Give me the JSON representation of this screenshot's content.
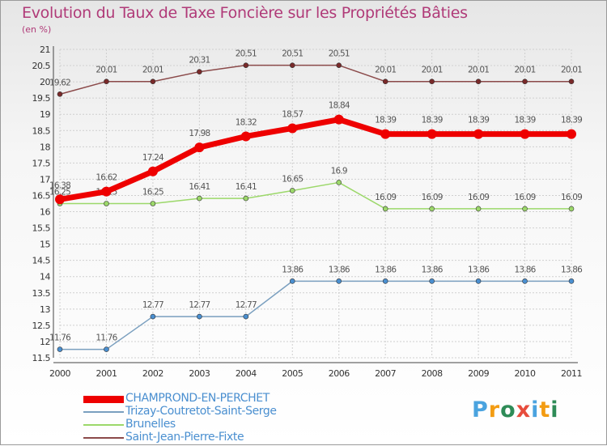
{
  "colors": {
    "title": "#b03a78",
    "champrond": "#ee0000",
    "trizay": "#4a8fd0",
    "trizay_line": "#7a9fbf",
    "brunelles": "#9cd86a",
    "saint_jean": "#7a2a2a",
    "saint_jean_line": "#8b4a4a",
    "grid": "#cfcfcf",
    "axis_text": "#333333",
    "label_text": "#555555"
  },
  "logo": {
    "letters": [
      "P",
      "r",
      "o",
      "x",
      "i",
      "t",
      "i"
    ],
    "letter_colors": [
      "#4aa3df",
      "#f39c12",
      "#2e8b57",
      "#e74c3c",
      "#4aa3df",
      "#f39c12",
      "#2e8b57"
    ]
  },
  "chart_data": {
    "type": "line",
    "title": "Evolution du Taux de Taxe Foncière sur les Propriétés Bâties",
    "subtitle": "(en %)",
    "x": [
      "2000",
      "2001",
      "2002",
      "2003",
      "2004",
      "2005",
      "2006",
      "2007",
      "2008",
      "2009",
      "2010",
      "2011"
    ],
    "ylim": [
      11.5,
      21
    ],
    "yticks": [
      "11.5",
      "12",
      "12.5",
      "13",
      "13.5",
      "14",
      "14.5",
      "15",
      "15.5",
      "16",
      "16.5",
      "17",
      "17.5",
      "18",
      "18.5",
      "19",
      "19.5",
      "20",
      "20.5",
      "21"
    ],
    "series": [
      {
        "key": "saint_jean",
        "name": "Saint-Jean-Pierre-Fixte",
        "values": [
          19.62,
          20.01,
          20.01,
          20.31,
          20.51,
          20.51,
          20.51,
          20.01,
          20.01,
          20.01,
          20.01,
          20.01
        ],
        "labels": [
          "19.62",
          "20.01",
          "20.01",
          "20.31",
          "20.51",
          "20.51",
          "20.51",
          "20.01",
          "20.01",
          "20.01",
          "20.01",
          "20.01"
        ]
      },
      {
        "key": "brunelles",
        "name": "Brunelles",
        "values": [
          16.25,
          16.25,
          16.25,
          16.41,
          16.41,
          16.65,
          16.9,
          16.09,
          16.09,
          16.09,
          16.09,
          16.09
        ],
        "labels": [
          "16.25",
          "16.25",
          "16.25",
          "16.41",
          "16.41",
          "16.65",
          "16.9",
          "16.09",
          "16.09",
          "16.09",
          "16.09",
          "16.09"
        ]
      },
      {
        "key": "trizay",
        "name": "Trizay-Coutretot-Saint-Serge",
        "values": [
          11.76,
          11.76,
          12.77,
          12.77,
          12.77,
          13.86,
          13.86,
          13.86,
          13.86,
          13.86,
          13.86,
          13.86
        ],
        "labels": [
          "11.76",
          "11.76",
          "12.77",
          "12.77",
          "12.77",
          "13.86",
          "13.86",
          "13.86",
          "13.86",
          "13.86",
          "13.86",
          "13.86"
        ]
      },
      {
        "key": "champrond",
        "name": "CHAMPROND-EN-PERCHET",
        "values": [
          16.38,
          16.62,
          17.24,
          17.98,
          18.32,
          18.57,
          18.84,
          18.39,
          18.39,
          18.39,
          18.39,
          18.39
        ],
        "labels": [
          "16.38",
          "16.62",
          "17.24",
          "17.98",
          "18.32",
          "18.57",
          "18.84",
          "18.39",
          "18.39",
          "18.39",
          "18.39",
          "18.39"
        ]
      }
    ],
    "legend": [
      {
        "key": "champrond",
        "name": "CHAMPROND-EN-PERCHET"
      },
      {
        "key": "trizay",
        "name": "Trizay-Coutretot-Saint-Serge"
      },
      {
        "key": "brunelles",
        "name": "Brunelles"
      },
      {
        "key": "saint_jean",
        "name": "Saint-Jean-Pierre-Fixte"
      }
    ]
  }
}
